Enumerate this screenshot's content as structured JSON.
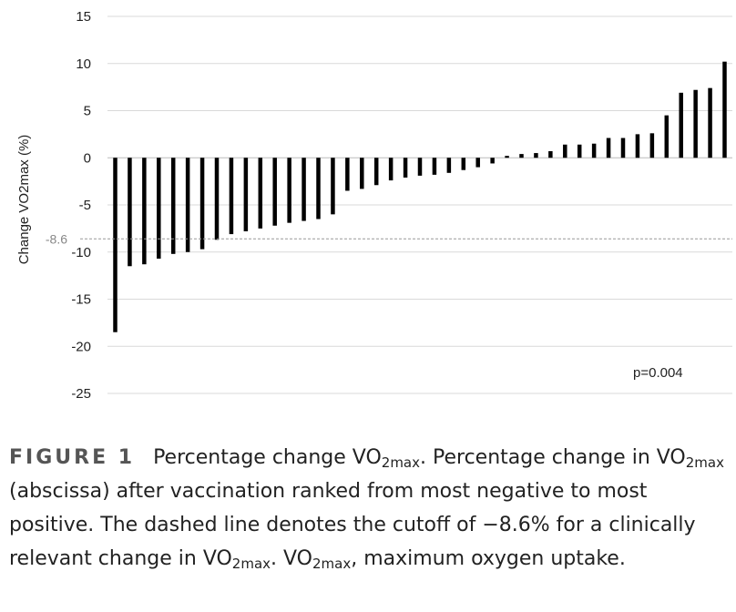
{
  "chart_data": {
    "type": "bar",
    "ylabel": "Change VO2max (%)",
    "ylim": [
      -25,
      15
    ],
    "yticks": [
      15,
      10,
      5,
      0,
      -5,
      -10,
      -15,
      -20,
      -25
    ],
    "grid": true,
    "cutoff": {
      "value": -8.6,
      "label": "-8.6"
    },
    "annotation": "p=0.004",
    "values": [
      -18.5,
      -11.5,
      -11.3,
      -10.7,
      -10.2,
      -10.0,
      -9.7,
      -8.7,
      -8.1,
      -7.8,
      -7.5,
      -7.2,
      -6.9,
      -6.7,
      -6.5,
      -6.0,
      -3.5,
      -3.3,
      -2.9,
      -2.4,
      -2.1,
      -1.9,
      -1.8,
      -1.6,
      -1.3,
      -1.0,
      -0.6,
      0.2,
      0.4,
      0.5,
      0.7,
      1.4,
      1.4,
      1.5,
      2.1,
      2.1,
      2.5,
      2.6,
      4.5,
      6.9,
      7.2,
      7.4,
      10.2
    ]
  },
  "caption": {
    "figure_label": "FIGURE 1",
    "parts": [
      "Percentage change VO",
      "2max",
      ". Percentage change in VO",
      "2max",
      " (abscissa) after vaccination ranked from most negative to most positive. The dashed line denotes the cutoff of −8.6% for a clinically relevant change in VO",
      "2max",
      ". VO",
      "2max",
      ", maximum oxygen uptake."
    ]
  }
}
